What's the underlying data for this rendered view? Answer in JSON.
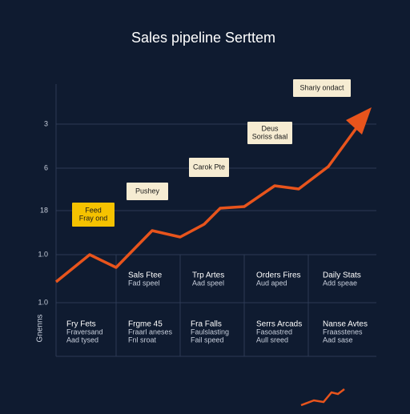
{
  "header": {
    "title": "Sales pipeline Serttem"
  },
  "axis": {
    "label": "Gnenns",
    "labels": [
      "3",
      "6",
      "18",
      "1.0",
      "1.0"
    ]
  },
  "callouts": [
    {
      "lines": [
        "Feed",
        "Fray ond"
      ],
      "style": "highlight"
    },
    {
      "lines": [
        "Pushey"
      ],
      "style": "note"
    },
    {
      "lines": [
        "Carok Pte"
      ],
      "style": "note"
    },
    {
      "lines": [
        "Deus",
        "Soriss daal"
      ],
      "style": "note"
    },
    {
      "lines": [
        "Shariy ondact"
      ],
      "style": "note"
    }
  ],
  "table": {
    "rows": [
      [
        {
          "lines": [
            "Sals Ftee",
            "Fad speel"
          ]
        },
        {
          "lines": [
            "Trp Artes",
            "Aad speel"
          ]
        },
        {
          "lines": [
            "Orders Fires",
            "Aud aped"
          ]
        },
        {
          "lines": [
            "Daily Stats",
            "Add speae"
          ]
        }
      ],
      [
        {
          "lines": [
            "Fry Fets",
            "Fraversand",
            "Aad tysed"
          ]
        },
        {
          "lines": [
            "Frgme 45",
            "Fraarl aneses",
            "Fnl sroat"
          ]
        },
        {
          "lines": [
            "Fra Falls",
            "Faulslasting",
            "Fail speed"
          ]
        },
        {
          "lines": [
            "Serrs Arcads",
            "Fasoastred",
            "Aull sreed"
          ]
        },
        {
          "lines": [
            "Nanse Avtes",
            "Fraasstenes",
            "Aad sase"
          ]
        }
      ]
    ]
  }
}
